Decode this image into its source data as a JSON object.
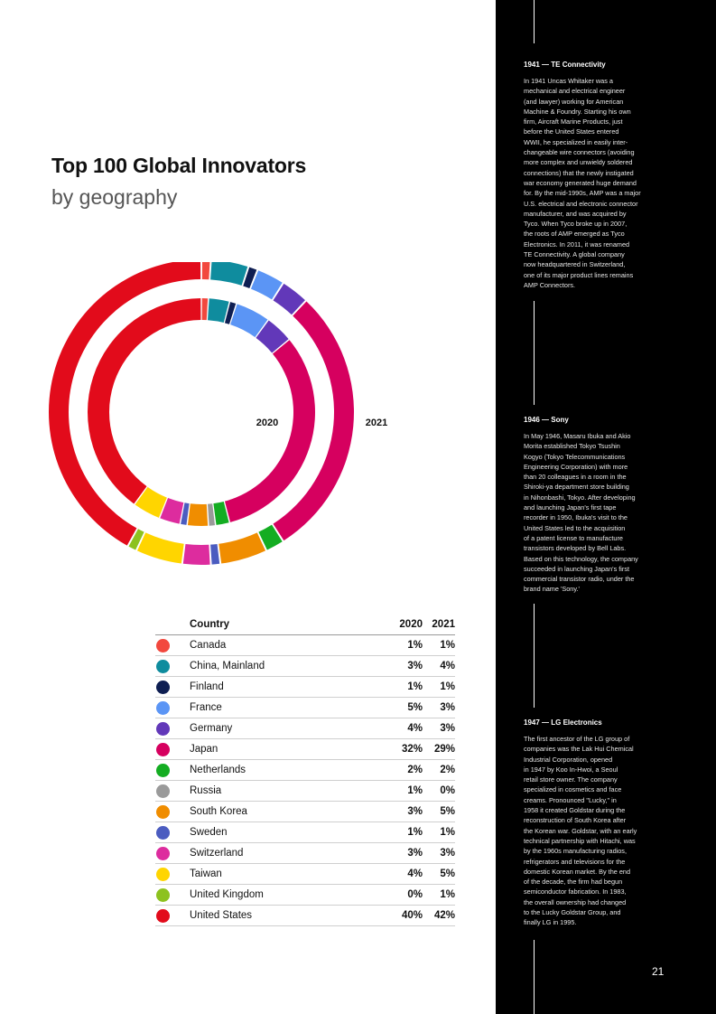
{
  "page": {
    "title": "Top 100 Global Innovators",
    "subtitle": "by geography",
    "page_number": "21"
  },
  "chart_data": {
    "type": "donut",
    "inner_ring_label": "2020",
    "outer_ring_label": "2021",
    "series_names": [
      "2020",
      "2021"
    ],
    "categories": [
      "Canada",
      "China, Mainland",
      "Finland",
      "France",
      "Germany",
      "Japan",
      "Netherlands",
      "Russia",
      "South Korea",
      "Sweden",
      "Switzerland",
      "Taiwan",
      "United Kingdom",
      "United States"
    ],
    "colors": [
      "#f2483e",
      "#0f8c9e",
      "#0e1e52",
      "#5b95f5",
      "#6238b9",
      "#d6005f",
      "#14ad22",
      "#9a9a9a",
      "#f08d00",
      "#4b5cc0",
      "#dd2c9e",
      "#ffd500",
      "#8dc21f",
      "#e20b1b"
    ],
    "values_2020": [
      1,
      3,
      1,
      5,
      4,
      32,
      2,
      1,
      3,
      1,
      3,
      4,
      0,
      40
    ],
    "values_2021": [
      1,
      4,
      1,
      3,
      3,
      29,
      2,
      0,
      5,
      1,
      3,
      5,
      1,
      42
    ],
    "table": {
      "header": {
        "country": "Country",
        "y2020": "2020",
        "y2021": "2021"
      },
      "rows": [
        {
          "country": "Canada",
          "y2020": "1%",
          "y2021": "1%"
        },
        {
          "country": "China, Mainland",
          "y2020": "3%",
          "y2021": "4%"
        },
        {
          "country": "Finland",
          "y2020": "1%",
          "y2021": "1%"
        },
        {
          "country": "France",
          "y2020": "5%",
          "y2021": "3%"
        },
        {
          "country": "Germany",
          "y2020": "4%",
          "y2021": "3%"
        },
        {
          "country": "Japan",
          "y2020": "32%",
          "y2021": "29%"
        },
        {
          "country": "Netherlands",
          "y2020": "2%",
          "y2021": "2%"
        },
        {
          "country": "Russia",
          "y2020": "1%",
          "y2021": "0%"
        },
        {
          "country": "South Korea",
          "y2020": "3%",
          "y2021": "5%"
        },
        {
          "country": "Sweden",
          "y2020": "1%",
          "y2021": "1%"
        },
        {
          "country": "Switzerland",
          "y2020": "3%",
          "y2021": "3%"
        },
        {
          "country": "Taiwan",
          "y2020": "4%",
          "y2021": "5%"
        },
        {
          "country": "United Kingdom",
          "y2020": "0%",
          "y2021": "1%"
        },
        {
          "country": "United States",
          "y2020": "40%",
          "y2021": "42%"
        }
      ]
    }
  },
  "sidebar": {
    "entries": [
      {
        "heading": "1941 — TE Connectivity",
        "lines": [
          "In 1941 Uncas Whitaker was a",
          "mechanical and electrical engineer",
          "(and lawyer) working for American",
          "Machine & Foundry. Starting his own",
          "firm, Aircraft Marine Products, just",
          "before the United States entered",
          "WWII, he specialized in easily inter-",
          "changeable wire connectors (avoiding",
          "more complex and unwieldy soldered",
          "connections) that the newly instigated",
          "war economy generated huge demand",
          "for. By the mid-1990s, AMP was a major",
          "U.S. electrical and electronic connector",
          "manufacturer, and was acquired by",
          "Tyco. When Tyco broke up in 2007,",
          "the roots of AMP emerged as Tyco",
          "Electronics. In 2011, it was renamed",
          "TE Connectivity. A global company",
          "now headquartered in Switzerland,",
          "one of its major product lines remains",
          "AMP Connectors."
        ]
      },
      {
        "heading": "1946 — Sony",
        "lines": [
          "In May 1946, Masaru Ibuka and Akio",
          "Morita established Tokyo Tsushin",
          "Kogyo (Tokyo Telecommunications",
          "Engineering Corporation) with more",
          "than 20 colleagues in a room in the",
          "Shiroki-ya department store building",
          "in Nihonbashi, Tokyo. After developing",
          "and launching Japan's first tape",
          "recorder in 1950, Ibuka's visit to the",
          "United States led to the acquisition",
          "of a patent license to manufacture",
          "transistors developed by Bell Labs.",
          "Based on this technology, the company",
          "succeeded in launching Japan's first",
          "commercial transistor radio, under the",
          "brand name 'Sony.'"
        ]
      },
      {
        "heading": "1947 — LG Electronics",
        "lines": [
          "The first ancestor of the LG group of",
          "companies was the Lak Hui Chemical",
          "Industrial Corporation, opened",
          "in 1947 by Koo In-Hwoi, a Seoul",
          "retail store owner. The company",
          "specialized in cosmetics and face",
          "creams. Pronounced \"Lucky,\" in",
          "1958 it created Goldstar during the",
          "reconstruction of South Korea after",
          "the Korean war. Goldstar, with an early",
          "technical partnership with Hitachi, was",
          "by the 1960s manufacturing radios,",
          "refrigerators and televisions for the",
          "domestic Korean market. By the end",
          "of the decade, the firm had begun",
          "semiconductor fabrication. In 1983,",
          "the overall ownership had changed",
          "to the Lucky Goldstar Group, and",
          "finally LG in 1995."
        ]
      }
    ]
  }
}
